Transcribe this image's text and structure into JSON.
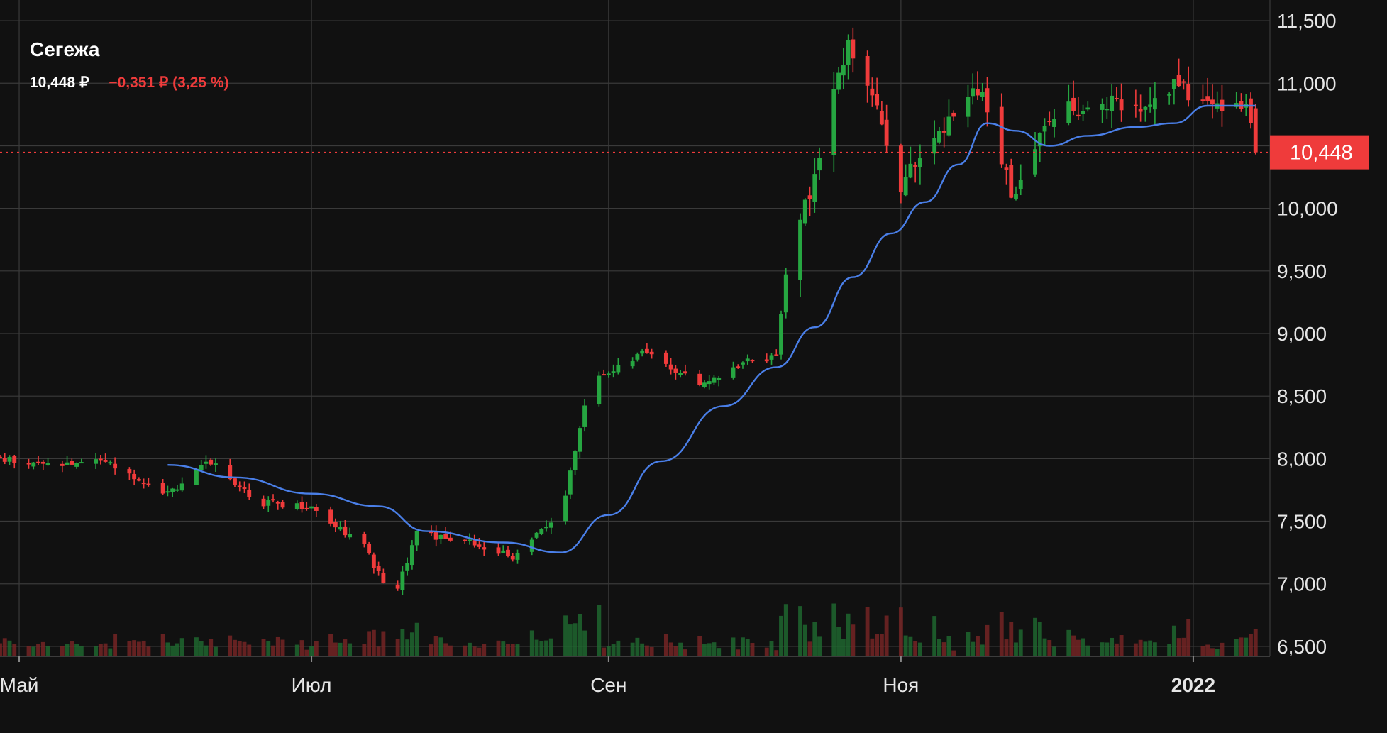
{
  "header": {
    "ticker": "Сегежа",
    "price": "10,448 ₽",
    "change": "−0,351 ₽ (3,25 %)"
  },
  "colors": {
    "background": "#111111",
    "grid": "#3a3a3a",
    "up": "#26a641",
    "down": "#ef3b3b",
    "ma_line": "#4a7fe8",
    "badge": "#ef3b3b"
  },
  "chart_data": {
    "type": "candlestick",
    "title": "Сегежа",
    "y_axis": {
      "ticks": [
        "11,500",
        "11,000",
        "10,500",
        "10,000",
        "9,500",
        "9,000",
        "8,500",
        "8,000",
        "7,500",
        "7,000",
        "6,500"
      ],
      "tick_values": [
        11.5,
        11.0,
        10.5,
        10.0,
        9.5,
        9.0,
        8.5,
        8.0,
        7.5,
        7.0,
        6.5
      ],
      "range": [
        6.42,
        11.58
      ],
      "position": "right",
      "unit": "₽"
    },
    "x_axis": {
      "ticks": [
        "Май",
        "Июл",
        "Сен",
        "Ноя",
        "2022"
      ],
      "tick_dates": [
        "2021-05-01",
        "2021-07-01",
        "2021-09-01",
        "2021-11-01",
        "2022-01-01"
      ],
      "range": [
        "2021-04-27",
        "2022-01-17"
      ]
    },
    "last_price": 10.448,
    "last_price_label": "10,448",
    "close_anchors": [
      {
        "date": "2021-04-27",
        "close": 8.0
      },
      {
        "date": "2021-05-04",
        "close": 7.95
      },
      {
        "date": "2021-05-20",
        "close": 7.97
      },
      {
        "date": "2021-06-01",
        "close": 7.72
      },
      {
        "date": "2021-06-10",
        "close": 7.98
      },
      {
        "date": "2021-06-20",
        "close": 7.65
      },
      {
        "date": "2021-07-01",
        "close": 7.62
      },
      {
        "date": "2021-07-12",
        "close": 7.3
      },
      {
        "date": "2021-07-18",
        "close": 6.85
      },
      {
        "date": "2021-07-23",
        "close": 7.4
      },
      {
        "date": "2021-08-02",
        "close": 7.35
      },
      {
        "date": "2021-08-12",
        "close": 7.22
      },
      {
        "date": "2021-08-22",
        "close": 7.55
      },
      {
        "date": "2021-08-28",
        "close": 8.6
      },
      {
        "date": "2021-09-08",
        "close": 8.85
      },
      {
        "date": "2021-09-20",
        "close": 8.6
      },
      {
        "date": "2021-10-01",
        "close": 8.8
      },
      {
        "date": "2021-10-06",
        "close": 8.8
      },
      {
        "date": "2021-10-08",
        "close": 9.5
      },
      {
        "date": "2021-10-12",
        "close": 10.0
      },
      {
        "date": "2021-10-16",
        "close": 10.6
      },
      {
        "date": "2021-10-21",
        "close": 11.3
      },
      {
        "date": "2021-10-26",
        "close": 10.9
      },
      {
        "date": "2021-11-01",
        "close": 10.2
      },
      {
        "date": "2021-11-08",
        "close": 10.6
      },
      {
        "date": "2021-11-18",
        "close": 10.95
      },
      {
        "date": "2021-11-24",
        "close": 10.1
      },
      {
        "date": "2021-12-02",
        "close": 10.7
      },
      {
        "date": "2021-12-10",
        "close": 10.85
      },
      {
        "date": "2021-12-20",
        "close": 10.8
      },
      {
        "date": "2021-12-28",
        "close": 11.0
      },
      {
        "date": "2022-01-03",
        "close": 10.85
      },
      {
        "date": "2022-01-12",
        "close": 10.8
      },
      {
        "date": "2022-01-14",
        "close": 10.448
      }
    ],
    "moving_average": [
      {
        "date": "2021-06-01",
        "value": 7.95
      },
      {
        "date": "2021-06-15",
        "value": 7.85
      },
      {
        "date": "2021-07-01",
        "value": 7.72
      },
      {
        "date": "2021-07-15",
        "value": 7.62
      },
      {
        "date": "2021-07-25",
        "value": 7.42
      },
      {
        "date": "2021-08-10",
        "value": 7.33
      },
      {
        "date": "2021-08-22",
        "value": 7.25
      },
      {
        "date": "2021-09-01",
        "value": 7.55
      },
      {
        "date": "2021-09-12",
        "value": 7.98
      },
      {
        "date": "2021-09-25",
        "value": 8.42
      },
      {
        "date": "2021-10-06",
        "value": 8.73
      },
      {
        "date": "2021-10-14",
        "value": 9.05
      },
      {
        "date": "2021-10-22",
        "value": 9.45
      },
      {
        "date": "2021-10-30",
        "value": 9.8
      },
      {
        "date": "2021-11-06",
        "value": 10.05
      },
      {
        "date": "2021-11-13",
        "value": 10.35
      },
      {
        "date": "2021-11-19",
        "value": 10.68
      },
      {
        "date": "2021-11-25",
        "value": 10.62
      },
      {
        "date": "2021-12-02",
        "value": 10.5
      },
      {
        "date": "2021-12-10",
        "value": 10.58
      },
      {
        "date": "2021-12-20",
        "value": 10.65
      },
      {
        "date": "2021-12-28",
        "value": 10.68
      },
      {
        "date": "2022-01-04",
        "value": 10.82
      },
      {
        "date": "2022-01-14",
        "value": 10.82
      }
    ],
    "volume_shown": true,
    "grid": true
  }
}
